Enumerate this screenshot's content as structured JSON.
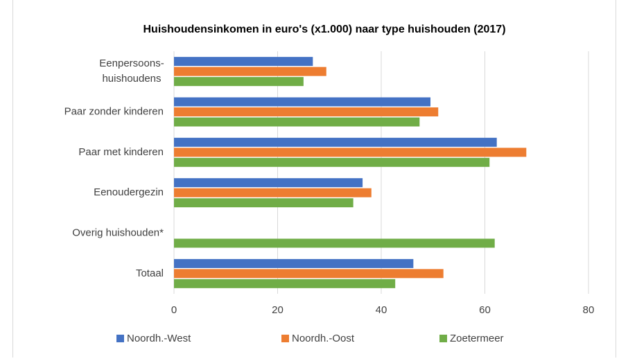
{
  "chart_data": {
    "type": "barh",
    "title": "Huishoudensinkomen in euro's (x1.000) naar type huishouden (2017)",
    "categories": [
      "Eenpersoons-\nhuishoudens",
      "Paar zonder kinderen",
      "Paar met kinderen",
      "Eenoudergezin",
      "Overig huishouden*",
      "Totaal"
    ],
    "series": [
      {
        "name": "Noordh.-West",
        "color": "#4472c4",
        "values": [
          26.8,
          49.5,
          62.3,
          36.4,
          null,
          46.2
        ]
      },
      {
        "name": "Noordh.-Oost",
        "color": "#ed7d31",
        "values": [
          29.4,
          51.0,
          68.0,
          38.1,
          null,
          52.0
        ]
      },
      {
        "name": "Zoetermeer",
        "color": "#70ad47",
        "values": [
          25.0,
          47.4,
          60.9,
          34.6,
          61.9,
          42.7
        ]
      }
    ],
    "xlim": [
      0,
      80
    ],
    "xticks": [
      0,
      20,
      40,
      60,
      80
    ],
    "grid": true,
    "legend": "bottom"
  }
}
